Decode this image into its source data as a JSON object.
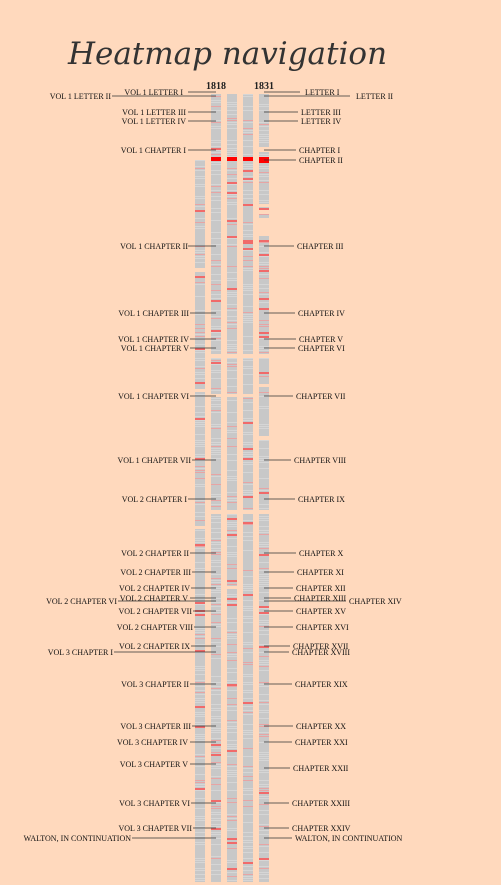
{
  "title": "Heatmap navigation",
  "editions": [
    "1818",
    "1831"
  ],
  "colors": {
    "background": "#ffd9bd",
    "column_base": "#c8c8c8",
    "light_stripe": "#d6d6d6",
    "mid_stripe": "#e7a4a4",
    "strong_stripe": "#f06a6a",
    "hot": "#ff0000"
  },
  "left_labels": [
    {
      "text": "VOL 1 LETTER I"
    },
    {
      "text": "VOL 1 LETTER II"
    },
    {
      "text": "VOL 1 LETTER III"
    },
    {
      "text": "VOL 1 LETTER IV"
    },
    {
      "text": "VOL 1 CHAPTER I"
    },
    {
      "text": "VOL 1 CHAPTER II"
    },
    {
      "text": "VOL 1 CHAPTER III"
    },
    {
      "text": "VOL 1 CHAPTER IV"
    },
    {
      "text": "VOL 1 CHAPTER V"
    },
    {
      "text": "VOL 1 CHAPTER VI"
    },
    {
      "text": "VOL 1 CHAPTER VII"
    },
    {
      "text": "VOL 2 CHAPTER I"
    },
    {
      "text": "VOL 2 CHAPTER II"
    },
    {
      "text": "VOL 2 CHAPTER III"
    },
    {
      "text": "VOL 2 CHAPTER IV"
    },
    {
      "text": "VOL 2 CHAPTER V"
    },
    {
      "text": "VOL 2 CHAPTER VI"
    },
    {
      "text": "VOL 2 CHAPTER VII"
    },
    {
      "text": "VOL 2 CHAPTER VIII"
    },
    {
      "text": "VOL 2 CHAPTER IX"
    },
    {
      "text": "VOL 3 CHAPTER I"
    },
    {
      "text": "VOL 3 CHAPTER II"
    },
    {
      "text": "VOL 3 CHAPTER III"
    },
    {
      "text": "VOL 3 CHAPTER IV"
    },
    {
      "text": "VOL 3 CHAPTER V"
    },
    {
      "text": "VOL 3 CHAPTER VI"
    },
    {
      "text": "VOL 3 CHAPTER VII"
    },
    {
      "text": "WALTON, IN CONTINUATION"
    }
  ],
  "right_labels": [
    {
      "text": "LETTER I"
    },
    {
      "text": "LETTER II"
    },
    {
      "text": "LETTER III"
    },
    {
      "text": "LETTER IV"
    },
    {
      "text": "CHAPTER I"
    },
    {
      "text": "CHAPTER II"
    },
    {
      "text": "CHAPTER III"
    },
    {
      "text": "CHAPTER IV"
    },
    {
      "text": "CHAPTER V"
    },
    {
      "text": "CHAPTER VI"
    },
    {
      "text": "CHAPTER VII"
    },
    {
      "text": "CHAPTER VIII"
    },
    {
      "text": "CHAPTER IX"
    },
    {
      "text": "CHAPTER X"
    },
    {
      "text": "CHAPTER XI"
    },
    {
      "text": "CHAPTER XII"
    },
    {
      "text": "CHAPTER XIII"
    },
    {
      "text": "CHAPTER XIV"
    },
    {
      "text": "CHAPTER XV"
    },
    {
      "text": "CHAPTER XVI"
    },
    {
      "text": "CHAPTER XVII"
    },
    {
      "text": "CHAPTER XVIII"
    },
    {
      "text": "CHAPTER XIX"
    },
    {
      "text": "CHAPTER XX"
    },
    {
      "text": "CHAPTER XXI"
    },
    {
      "text": "CHAPTER XXII"
    },
    {
      "text": "CHAPTER XXIII"
    },
    {
      "text": "CHAPTER XXIV"
    },
    {
      "text": "WALTON, IN CONTINUATION"
    }
  ]
}
